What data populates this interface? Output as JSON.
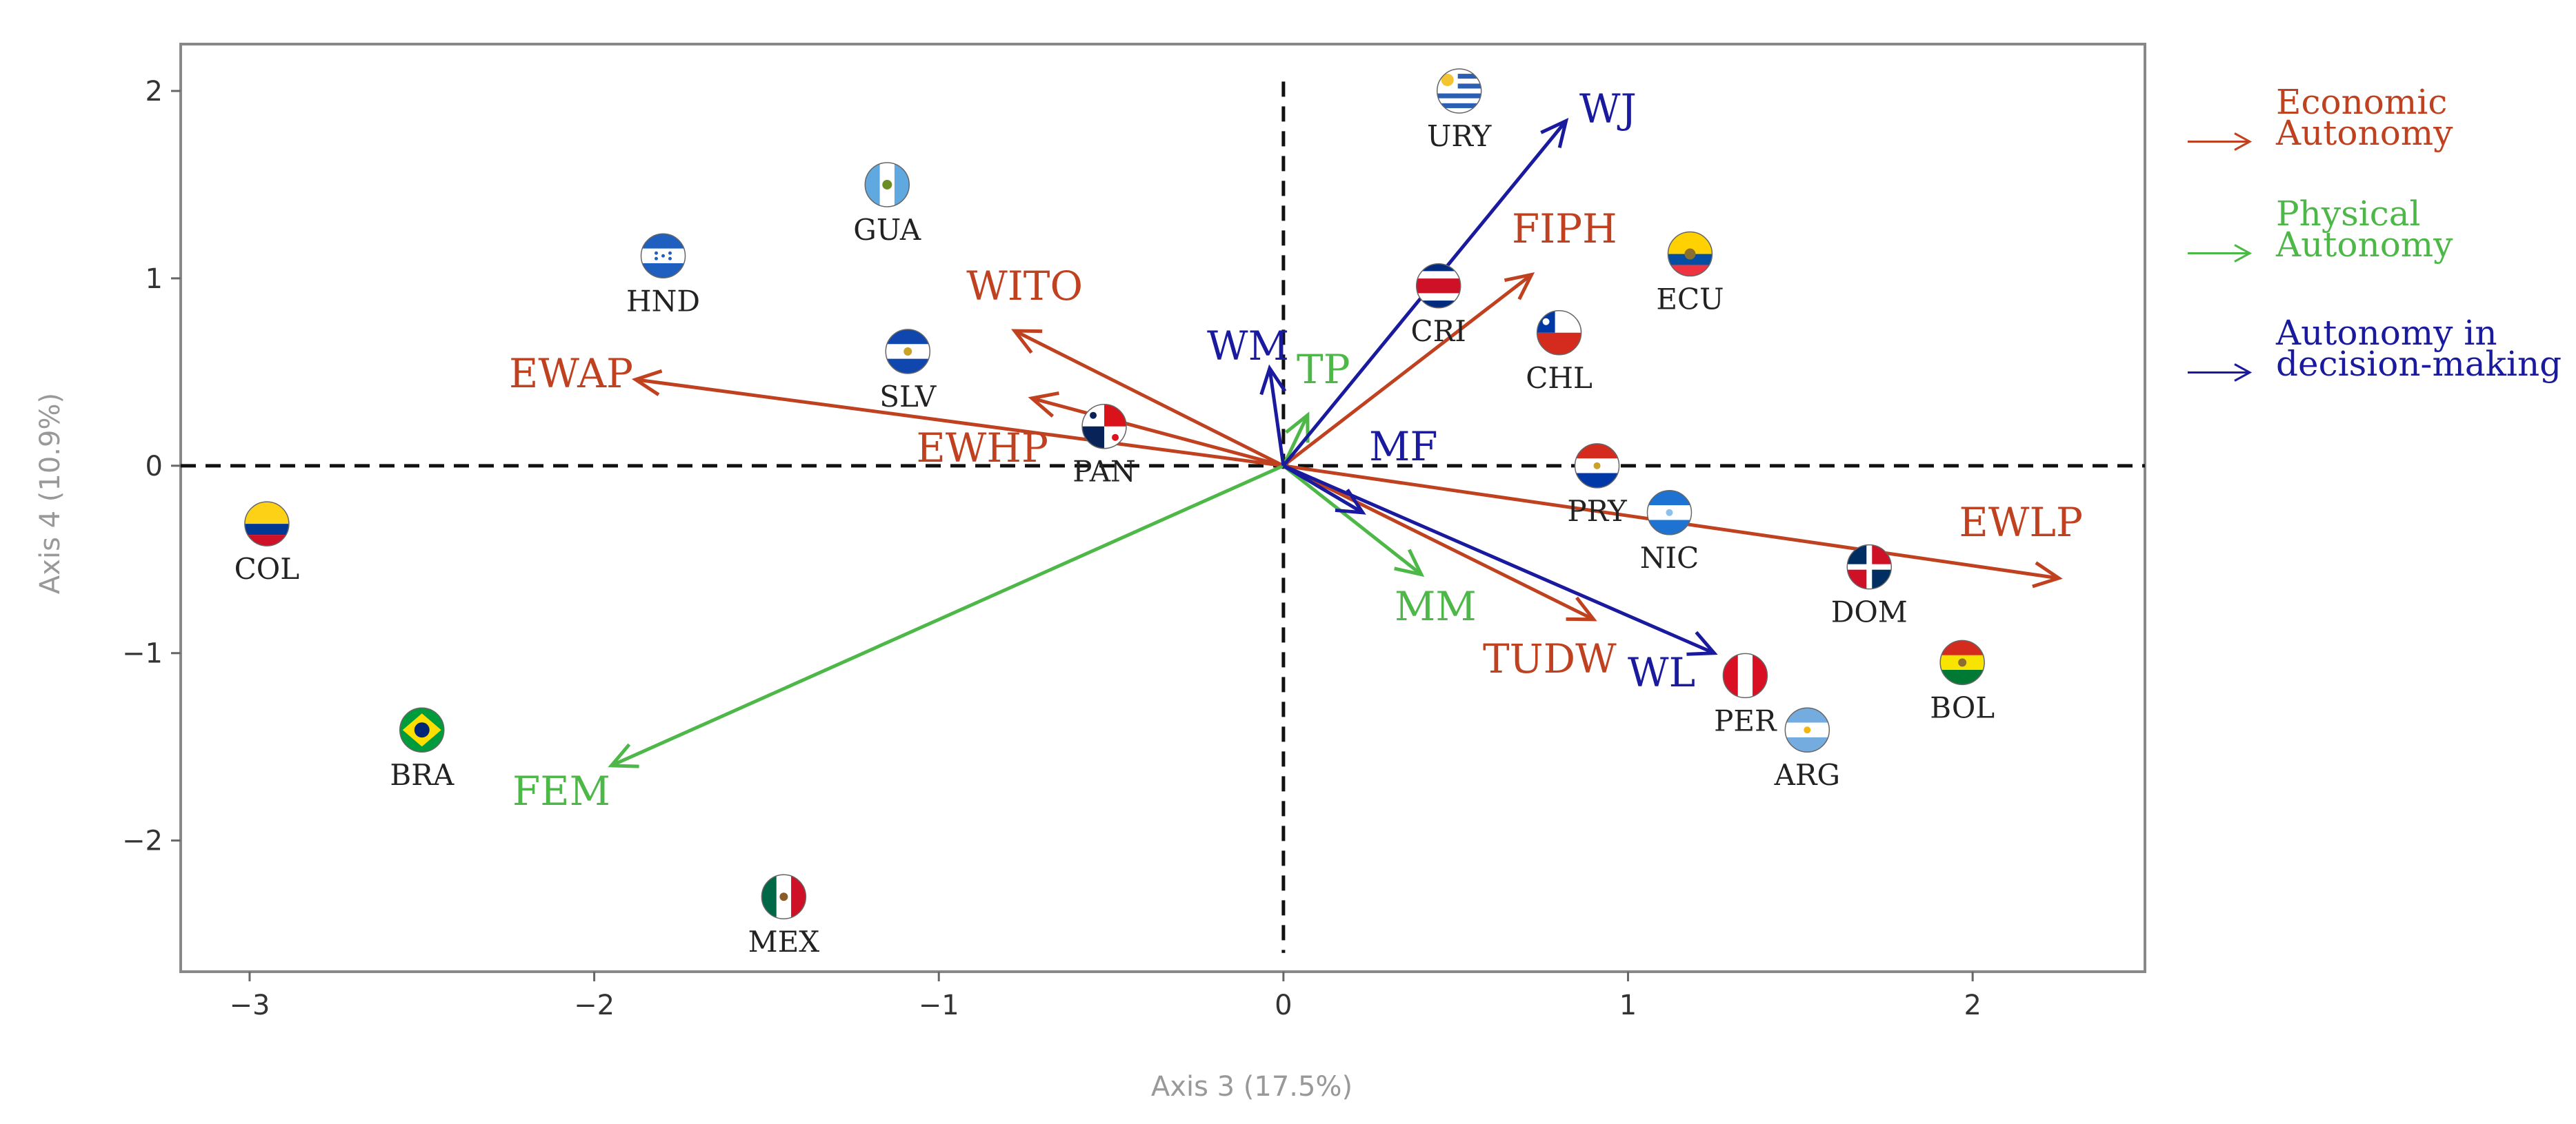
{
  "chart_data": {
    "type": "scatter",
    "subtype": "biplot",
    "xlabel": "Axis 3 (17.5%)",
    "ylabel": "Axis 4 (10.9%)",
    "xlim": [
      -3.2,
      2.5
    ],
    "ylim": [
      -2.7,
      2.25
    ],
    "x_ticks": [
      -3,
      -2,
      -1,
      0,
      1,
      2
    ],
    "y_ticks": [
      2,
      1,
      0,
      -1,
      -2
    ],
    "x_tick_labels": [
      "−3",
      "−2",
      "−1",
      "0",
      "1",
      "2"
    ],
    "y_tick_labels": [
      "2",
      "1",
      "0",
      "−1",
      "−2"
    ],
    "reference_lines": "dashed lines at x = 0 and y = 0",
    "groups": [
      {
        "key": "economic",
        "label_line1": "Economic",
        "label_line2": "Autonomy",
        "color": "#C0411F"
      },
      {
        "key": "physical",
        "label_line1": "Physical",
        "label_line2": "Autonomy",
        "color": "#4DB848"
      },
      {
        "key": "decision",
        "label_line1": "Autonomy in",
        "label_line2": "decision-making",
        "color": "#1A1A9E"
      }
    ],
    "vectors": [
      {
        "label": "EWLP",
        "group": "economic",
        "x": 2.25,
        "y": -0.6
      },
      {
        "label": "EWAP",
        "group": "economic",
        "x": -1.88,
        "y": 0.46
      },
      {
        "label": "WITO",
        "group": "economic",
        "x": -0.78,
        "y": 0.72
      },
      {
        "label": "EWHP",
        "group": "economic",
        "x": -0.73,
        "y": 0.36
      },
      {
        "label": "FIPH",
        "group": "economic",
        "x": 0.72,
        "y": 1.02
      },
      {
        "label": "TUDW",
        "group": "economic",
        "x": 0.9,
        "y": -0.82
      },
      {
        "label": "FEM",
        "group": "physical",
        "x": -1.95,
        "y": -1.6
      },
      {
        "label": "MM",
        "group": "physical",
        "x": 0.4,
        "y": -0.58
      },
      {
        "label": "TP",
        "group": "physical",
        "x": 0.07,
        "y": 0.27
      },
      {
        "label": "WJ",
        "group": "decision",
        "x": 0.82,
        "y": 1.84
      },
      {
        "label": "WL",
        "group": "decision",
        "x": 1.25,
        "y": -1.0
      },
      {
        "label": "WM",
        "group": "decision",
        "x": -0.04,
        "y": 0.52
      },
      {
        "label": "MF",
        "group": "decision",
        "x": 0.23,
        "y": -0.25
      }
    ],
    "countries": [
      {
        "label": "URY",
        "x": 0.51,
        "y": 2.0
      },
      {
        "label": "GUA",
        "x": -1.15,
        "y": 1.5
      },
      {
        "label": "HND",
        "x": -1.8,
        "y": 1.12
      },
      {
        "label": "ECU",
        "x": 1.18,
        "y": 1.13
      },
      {
        "label": "CRI",
        "x": 0.45,
        "y": 0.96
      },
      {
        "label": "CHL",
        "x": 0.8,
        "y": 0.71
      },
      {
        "label": "SLV",
        "x": -1.09,
        "y": 0.61
      },
      {
        "label": "PAN",
        "x": -0.52,
        "y": 0.21
      },
      {
        "label": "PRY",
        "x": 0.91,
        "y": 0.0
      },
      {
        "label": "NIC",
        "x": 1.12,
        "y": -0.25
      },
      {
        "label": "COL",
        "x": -2.95,
        "y": -0.31
      },
      {
        "label": "DOM",
        "x": 1.7,
        "y": -0.54
      },
      {
        "label": "BOL",
        "x": 1.97,
        "y": -1.05
      },
      {
        "label": "PER",
        "x": 1.34,
        "y": -1.12
      },
      {
        "label": "ARG",
        "x": 1.52,
        "y": -1.41
      },
      {
        "label": "BRA",
        "x": -2.5,
        "y": -1.41
      },
      {
        "label": "MEX",
        "x": -1.45,
        "y": -2.3
      }
    ],
    "legend_position": "right"
  }
}
